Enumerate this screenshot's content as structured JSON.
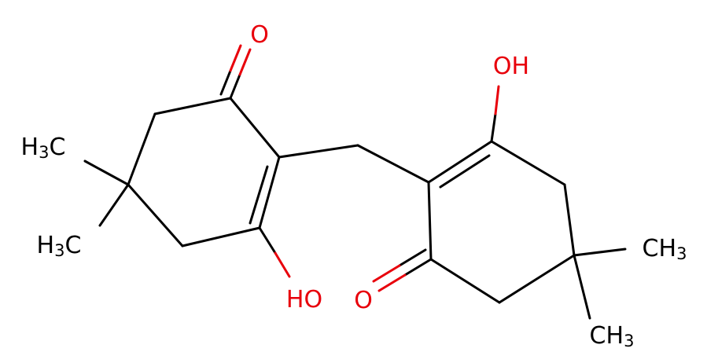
{
  "molecule": {
    "atoms": [
      {
        "label": "O"
      },
      {
        "label": "HO"
      },
      {
        "label": "OH"
      },
      {
        "label": "O"
      },
      {
        "label": "H3C"
      },
      {
        "label": "H3C"
      },
      {
        "label": "CH3"
      },
      {
        "label": "CH3"
      }
    ]
  }
}
